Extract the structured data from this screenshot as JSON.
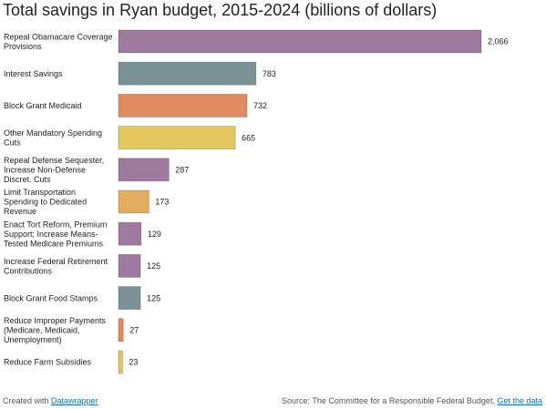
{
  "chart_data": {
    "type": "bar",
    "orientation": "horizontal",
    "title": "Total savings in Ryan budget, 2015-2024 (billions of dollars)",
    "categories": [
      [
        "Repeal Obamacare Coverage",
        "Provisions"
      ],
      [
        "Interest Savings"
      ],
      [
        "Block Grant Medicaid"
      ],
      [
        "Other Mandatory Spending",
        "Cuts"
      ],
      [
        "Repeal Defense Sequester,",
        "Increase Non-Defense",
        "Discret. Cuts"
      ],
      [
        "Limit Transportation",
        "Spending to Dedicated",
        "Revenue"
      ],
      [
        "Enact Tort Reform, Premium",
        "Support; Increase Means-",
        "Tested Medicare Premiums"
      ],
      [
        "Increase Federal Retirement",
        "Contributions"
      ],
      [
        "Block Grant Food Stamps"
      ],
      [
        "Reduce Improper Payments",
        "(Medicare, Medicaid,",
        "Unemployment)"
      ],
      [
        "Reduce Farm Subsidies"
      ]
    ],
    "values": [
      2066,
      783,
      732,
      665,
      287,
      173,
      129,
      125,
      125,
      27,
      23
    ],
    "value_labels": [
      "2,066",
      "783",
      "732",
      "665",
      "287",
      "173",
      "129",
      "125",
      "125",
      "27",
      "23"
    ],
    "colors": [
      "#9e7a9e",
      "#7a9196",
      "#e08a62",
      "#e3c75f",
      "#9e7a9e",
      "#e3ad5f",
      "#9e7a9e",
      "#9e7a9e",
      "#7a9196",
      "#e08a62",
      "#e3c75f"
    ],
    "xlim": [
      0,
      2066
    ],
    "grid": false,
    "legend": false
  },
  "footer": {
    "created_prefix": "Created with ",
    "created_link": "Datawrapper",
    "source_prefix": "Source: The Committee for a Responsible Federal Budget, ",
    "source_link": "Get the data"
  }
}
